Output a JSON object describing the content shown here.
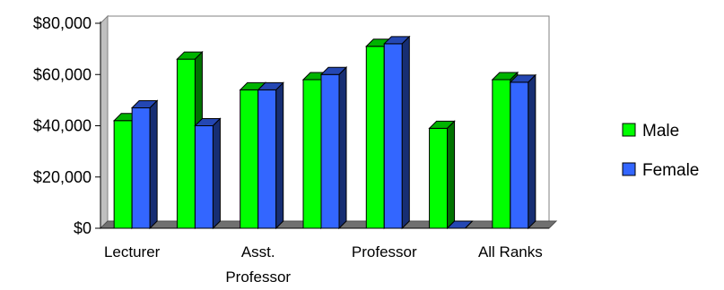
{
  "chart_data": {
    "type": "bar",
    "title": "",
    "xlabel": "",
    "ylabel": "",
    "ylim": [
      0,
      80000
    ],
    "yticks": [
      "$0",
      "$20,000",
      "$40,000",
      "$60,000",
      "$80,000"
    ],
    "ytick_values": [
      0,
      20000,
      40000,
      60000,
      80000
    ],
    "categories": [
      "Lecturer",
      "",
      "Asst. Professor",
      "",
      "Professor",
      "",
      "All Ranks"
    ],
    "category_lines": [
      [
        "Lecturer"
      ],
      [],
      [
        "Asst.",
        "Professor"
      ],
      [],
      [
        "Professor"
      ],
      [],
      [
        "All Ranks"
      ]
    ],
    "series": [
      {
        "name": "Male",
        "color": "#00ff00",
        "values": [
          42000,
          66000,
          54000,
          58000,
          71000,
          39000,
          58000
        ]
      },
      {
        "name": "Female",
        "color": "#3366ff",
        "values": [
          47000,
          40000,
          54000,
          60000,
          72000,
          0,
          57000
        ]
      }
    ],
    "grid": false,
    "legend": "right",
    "style": "3d-clustered-column"
  }
}
